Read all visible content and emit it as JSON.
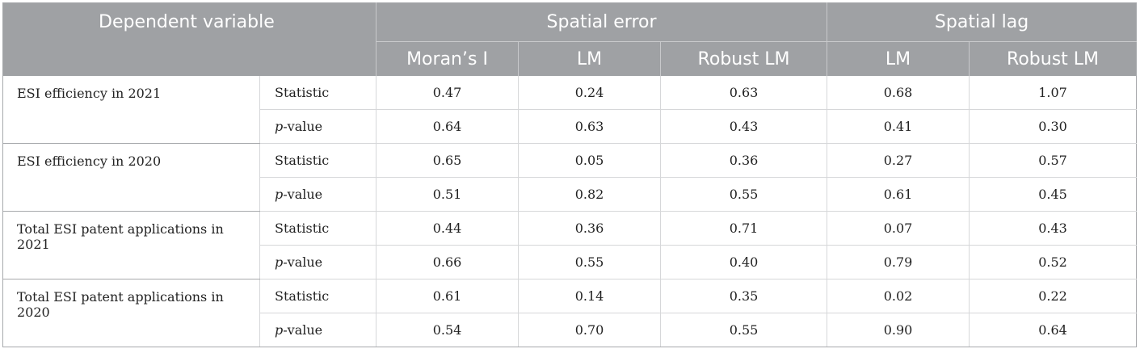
{
  "header": {
    "dependent_variable": "Dependent variable",
    "spatial_error": "Spatial error",
    "spatial_lag": "Spatial lag",
    "morans_i": "Moran’s I",
    "lm_error": "LM",
    "robust_lm_error": "Robust LM",
    "lm_lag": "LM",
    "robust_lm_lag": "Robust LM"
  },
  "row_labels": {
    "statistic": "Statistic",
    "p_prefix": "p",
    "p_suffix": "-value"
  },
  "groups": [
    {
      "name": "ESI efficiency in 2021",
      "statistic": [
        "0.47",
        "0.24",
        "0.63",
        "0.68",
        "1.07"
      ],
      "p_value": [
        "0.64",
        "0.63",
        "0.43",
        "0.41",
        "0.30"
      ]
    },
    {
      "name": "ESI efficiency in 2020",
      "statistic": [
        "0.65",
        "0.05",
        "0.36",
        "0.27",
        "0.57"
      ],
      "p_value": [
        "0.51",
        "0.82",
        "0.55",
        "0.61",
        "0.45"
      ]
    },
    {
      "name": "Total ESI patent applications in 2021",
      "statistic": [
        "0.44",
        "0.36",
        "0.71",
        "0.07",
        "0.43"
      ],
      "p_value": [
        "0.66",
        "0.55",
        "0.40",
        "0.79",
        "0.52"
      ]
    },
    {
      "name": "Total ESI patent applications in 2020",
      "statistic": [
        "0.61",
        "0.14",
        "0.35",
        "0.02",
        "0.22"
      ],
      "p_value": [
        "0.54",
        "0.70",
        "0.55",
        "0.90",
        "0.64"
      ]
    }
  ],
  "colors": {
    "header_bg": "#9fa1a4",
    "header_text": "#ffffff",
    "grid_line": "#d6d7d9"
  }
}
